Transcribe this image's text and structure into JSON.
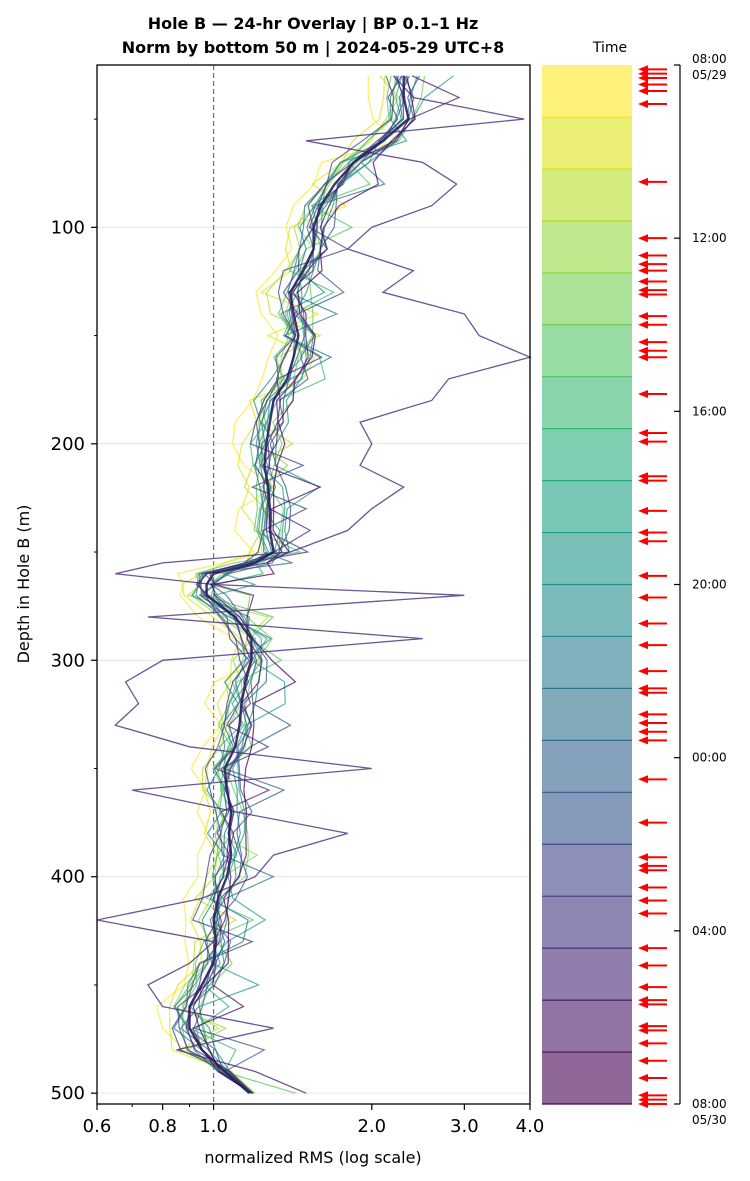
{
  "chart_data": {
    "type": "line",
    "title_line1": "Hole B — 24-hr Overlay  |  BP 0.1–1 Hz",
    "title_line2": "Norm by bottom 50 m  |  2024-05-29 UTC+8",
    "xlabel": "normalized RMS  (log scale)",
    "ylabel": "Depth in Hole B (m)",
    "x_scale": "log",
    "xlim": [
      0.6,
      4.0
    ],
    "ylim": [
      505,
      25
    ],
    "y_inverted": true,
    "x_ticks": [
      {
        "value": 0.6,
        "label": "0.6"
      },
      {
        "value": 0.8,
        "label": "0.8"
      },
      {
        "value": 1.0,
        "label": "1.0"
      },
      {
        "value": 2.0,
        "label": "2.0"
      },
      {
        "value": 3.0,
        "label": "3.0"
      },
      {
        "value": 4.0,
        "label": "4.0"
      }
    ],
    "y_ticks": [
      {
        "value": 100,
        "label": "100"
      },
      {
        "value": 200,
        "label": "200"
      },
      {
        "value": 300,
        "label": "300"
      },
      {
        "value": 400,
        "label": "400"
      },
      {
        "value": 500,
        "label": "500"
      }
    ],
    "reference_line_x": 1.0,
    "grid": "horizontal",
    "depth": [
      30,
      40,
      50,
      60,
      70,
      80,
      90,
      100,
      110,
      120,
      130,
      140,
      150,
      160,
      170,
      180,
      190,
      200,
      210,
      220,
      230,
      240,
      250,
      255,
      260,
      265,
      270,
      280,
      290,
      300,
      310,
      320,
      330,
      340,
      350,
      360,
      370,
      380,
      390,
      400,
      410,
      420,
      430,
      440,
      450,
      460,
      470,
      480,
      490,
      500
    ],
    "median": [
      2.3,
      2.3,
      2.35,
      2.1,
      1.85,
      1.7,
      1.6,
      1.55,
      1.55,
      1.48,
      1.4,
      1.42,
      1.45,
      1.42,
      1.38,
      1.3,
      1.28,
      1.26,
      1.25,
      1.27,
      1.28,
      1.28,
      1.3,
      1.2,
      1.0,
      0.97,
      0.97,
      1.1,
      1.18,
      1.18,
      1.15,
      1.13,
      1.12,
      1.1,
      1.05,
      1.06,
      1.08,
      1.07,
      1.08,
      1.06,
      1.02,
      1.0,
      1.01,
      1.0,
      0.95,
      0.9,
      0.9,
      0.95,
      1.05,
      1.17
    ],
    "outlier_series": [
      2.2,
      2.4,
      3.9,
      1.5,
      2.5,
      2.9,
      2.6,
      2.0,
      1.8,
      2.4,
      2.1,
      3.0,
      3.2,
      4.0,
      2.8,
      2.6,
      1.9,
      2.0,
      1.9,
      2.3,
      2.0,
      1.8,
      1.4,
      0.8,
      0.65,
      1.0,
      3.0,
      0.75,
      2.5,
      0.8,
      0.68,
      0.72,
      0.65,
      0.9,
      2.0,
      0.7,
      1.1,
      1.8,
      1.3,
      1.2,
      0.95,
      0.6,
      1.0,
      0.9,
      0.75,
      0.8,
      1.3,
      0.85,
      1.2,
      1.5
    ],
    "colorbar": {
      "label": "Time",
      "colors": [
        "#fde725",
        "#dde318",
        "#b8de29",
        "#95d840",
        "#73d055",
        "#55c667",
        "#3cbb75",
        "#29af7f",
        "#20a386",
        "#1f968b",
        "#238a8d",
        "#287d8e",
        "#2d718e",
        "#33638d",
        "#39568c",
        "#404688",
        "#453781",
        "#482677",
        "#481567",
        "#440154"
      ],
      "ticks": [
        {
          "value": 0,
          "label": "08:00",
          "sublabel": "05/29"
        },
        {
          "value": 4,
          "label": "12:00",
          "sublabel": ""
        },
        {
          "value": 8,
          "label": "16:00",
          "sublabel": ""
        },
        {
          "value": 12,
          "label": "20:00",
          "sublabel": ""
        },
        {
          "value": 16,
          "label": "00:00",
          "sublabel": ""
        },
        {
          "value": 20,
          "label": "04:00",
          "sublabel": ""
        },
        {
          "value": 24,
          "label": "08:00",
          "sublabel": "05/30"
        }
      ],
      "arrow_color": "#ff0000",
      "arrow_hours": [
        0.1,
        0.2,
        0.3,
        0.45,
        0.6,
        0.9,
        2.7,
        4.0,
        4.4,
        4.6,
        4.75,
        5.0,
        5.2,
        5.3,
        5.8,
        6.0,
        6.4,
        6.6,
        6.75,
        7.6,
        8.5,
        8.7,
        9.5,
        9.6,
        10.3,
        10.8,
        11.0,
        11.8,
        12.3,
        12.9,
        13.4,
        14.0,
        14.4,
        14.5,
        15.0,
        15.2,
        15.4,
        15.6,
        16.5,
        17.5,
        18.3,
        18.5,
        18.6,
        19.0,
        19.3,
        19.6,
        20.4,
        20.8,
        21.3,
        21.6,
        21.7,
        22.2,
        22.3,
        22.6,
        23.0,
        23.4,
        23.8,
        23.9,
        24.0
      ]
    }
  }
}
